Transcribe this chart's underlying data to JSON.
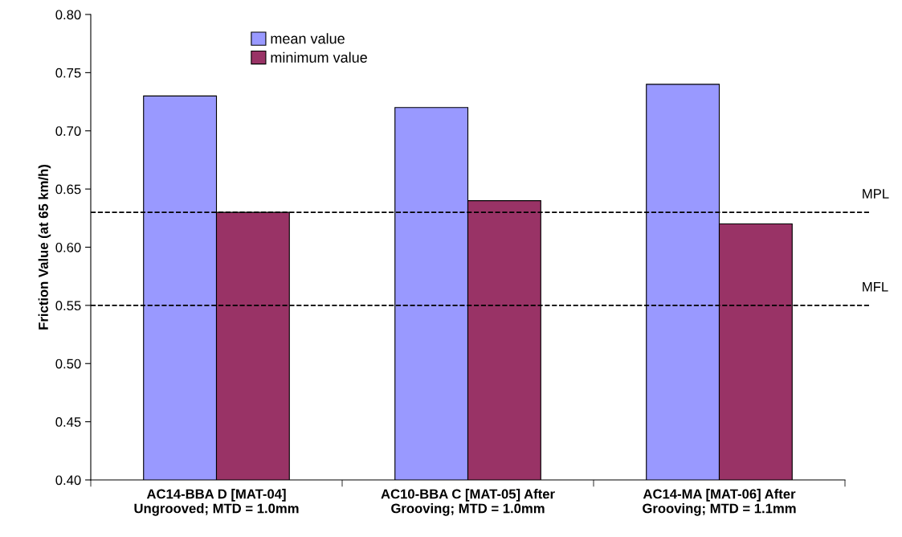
{
  "chart_data": {
    "type": "bar",
    "ylabel": "Friction Value (at 65 km/h)",
    "categories": [
      "AC14-BBA D [MAT-04]\nUngrooved; MTD = 1.0mm",
      "AC10-BBA C [MAT-05] After\nGrooving; MTD = 1.0mm",
      "AC14-MA [MAT-06] After\nGrooving; MTD = 1.1mm"
    ],
    "series": [
      {
        "name": "mean value",
        "color": "#9999ff",
        "values": [
          0.73,
          0.72,
          0.74
        ]
      },
      {
        "name": "minimum value",
        "color": "#993366",
        "values": [
          0.63,
          0.64,
          0.62
        ]
      }
    ],
    "ylim": [
      0.4,
      0.8
    ],
    "yticks": [
      {
        "value": 0.4,
        "label": "0.40"
      },
      {
        "value": 0.45,
        "label": "0.45"
      },
      {
        "value": 0.5,
        "label": "0.50"
      },
      {
        "value": 0.55,
        "label": "0.55"
      },
      {
        "value": 0.6,
        "label": "0.60"
      },
      {
        "value": 0.65,
        "label": "0.65"
      },
      {
        "value": 0.7,
        "label": "0.70"
      },
      {
        "value": 0.75,
        "label": "0.75"
      },
      {
        "value": 0.8,
        "label": "0.80"
      }
    ],
    "ref_lines": [
      {
        "axis": "y",
        "value": 0.63,
        "label": "MPL",
        "color": "#000000",
        "line_style": "dashed"
      },
      {
        "axis": "y",
        "value": 0.55,
        "label": "MFL",
        "color": "#000000",
        "line_style": "dashed"
      }
    ],
    "legend": "top",
    "grid": false
  }
}
